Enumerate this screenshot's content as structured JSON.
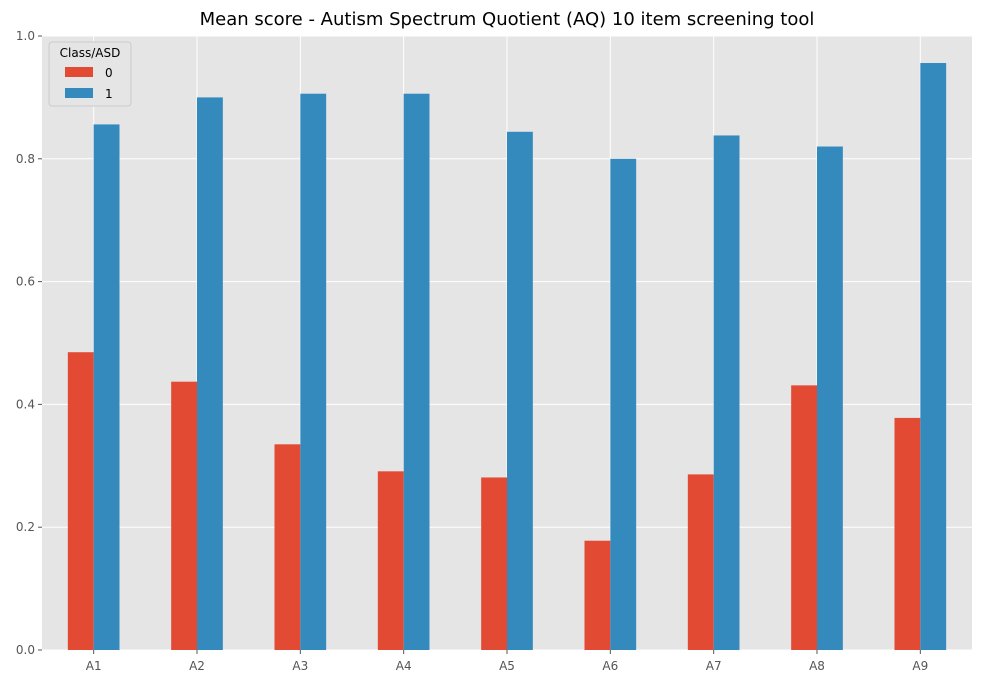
{
  "chart_data": {
    "type": "bar",
    "title": "Mean score - Autism Spectrum Quotient (AQ) 10 item screening tool",
    "xlabel": "",
    "ylabel": "",
    "categories": [
      "A1",
      "A2",
      "A3",
      "A4",
      "A5",
      "A6",
      "A7",
      "A8",
      "A9"
    ],
    "series": [
      {
        "name": "0",
        "color": "#E24A33",
        "values": [
          0.485,
          0.437,
          0.335,
          0.291,
          0.281,
          0.178,
          0.286,
          0.431,
          0.378
        ]
      },
      {
        "name": "1",
        "color": "#348ABD",
        "values": [
          0.856,
          0.9,
          0.906,
          0.906,
          0.844,
          0.8,
          0.838,
          0.82,
          0.956
        ]
      }
    ],
    "ylim": [
      0,
      1.0
    ],
    "yticks": [
      "0.0",
      "0.2",
      "0.4",
      "0.6",
      "0.8",
      "1.0"
    ],
    "grid": true,
    "legend": {
      "title": "Class/ASD",
      "placement": "top-left"
    },
    "colors": {
      "background": "#E5E5E5",
      "grid": "#FFFFFF"
    }
  }
}
